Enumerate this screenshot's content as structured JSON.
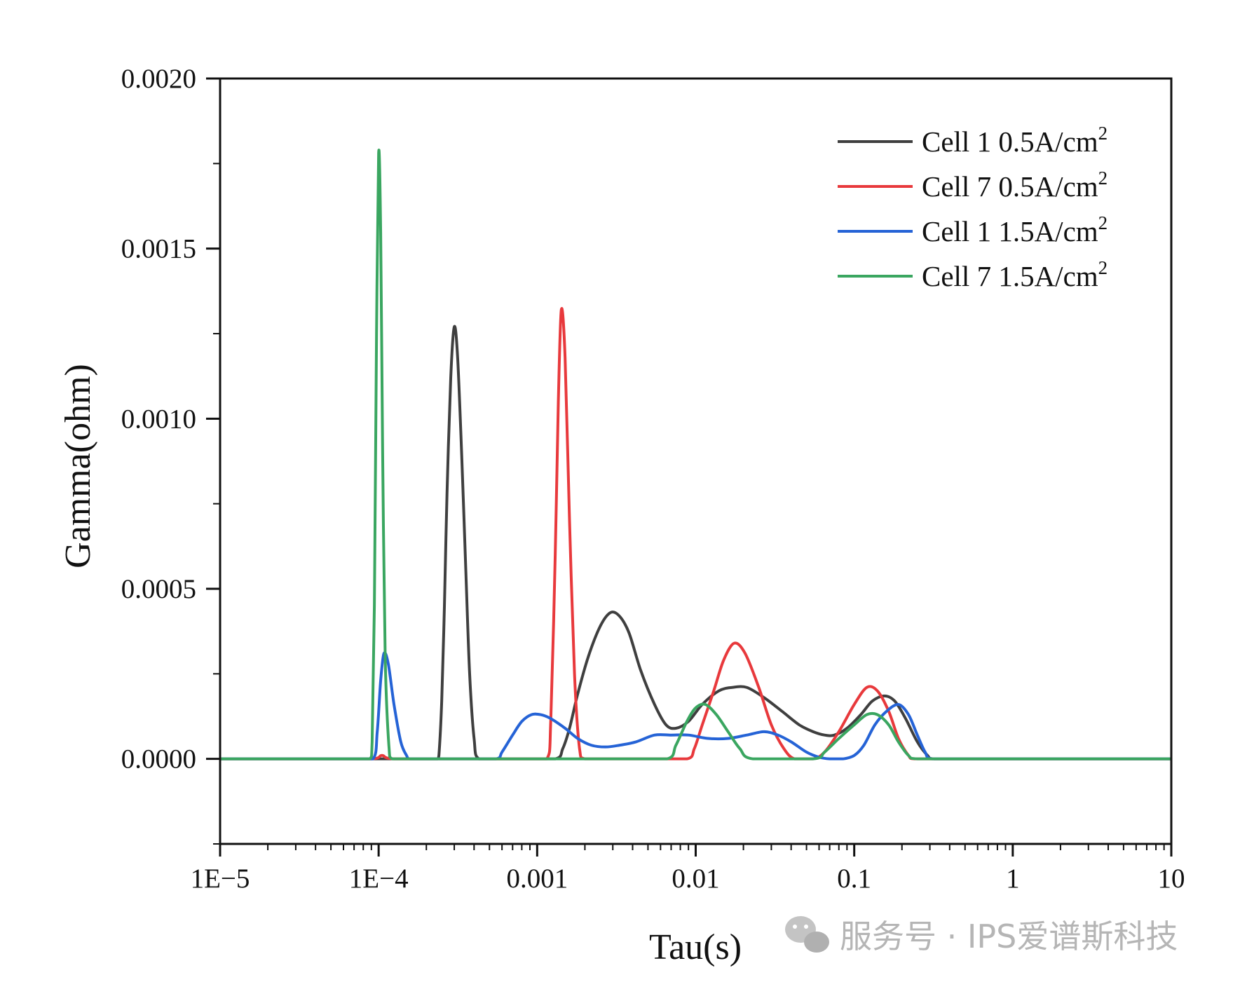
{
  "chart_data": {
    "type": "line",
    "title": "",
    "xlabel": "Tau(s)",
    "ylabel": "Gamma(ohm)",
    "x_scale": "log",
    "xlim": [
      1e-05,
      10
    ],
    "ylim": [
      -0.00025,
      0.002
    ],
    "x_ticks": [
      {
        "value": 1e-05,
        "label": "1E−5"
      },
      {
        "value": 0.0001,
        "label": "1E−4"
      },
      {
        "value": 0.001,
        "label": "0.001"
      },
      {
        "value": 0.01,
        "label": "0.01"
      },
      {
        "value": 0.1,
        "label": "0.1"
      },
      {
        "value": 1,
        "label": "1"
      },
      {
        "value": 10,
        "label": "10"
      }
    ],
    "y_ticks": [
      {
        "value": 0,
        "label": "0.0000"
      },
      {
        "value": 0.0005,
        "label": "0.0005"
      },
      {
        "value": 0.001,
        "label": "0.0010"
      },
      {
        "value": 0.0015,
        "label": "0.0015"
      },
      {
        "value": 0.002,
        "label": "0.0020"
      }
    ],
    "grid": false,
    "legend_position": "top-right",
    "series": [
      {
        "name": "Cell 1 0.5A/cm2",
        "label": "Cell 1 0.5A/cm",
        "superscript": "2",
        "color": "#3f3f3f",
        "points": [
          [
            1e-05,
            0
          ],
          [
            0.000235,
            0
          ],
          [
            0.00024,
            1e-05
          ],
          [
            0.00025,
            0.00017
          ],
          [
            0.00026,
            0.00045
          ],
          [
            0.00027,
            0.00078
          ],
          [
            0.000285,
            0.00112
          ],
          [
            0.0003,
            0.00127
          ],
          [
            0.000315,
            0.00118
          ],
          [
            0.000335,
            0.00088
          ],
          [
            0.000355,
            0.00055
          ],
          [
            0.000375,
            0.00025
          ],
          [
            0.0004,
            6e-05
          ],
          [
            0.00043,
            0
          ],
          [
            0.0013,
            0
          ],
          [
            0.00145,
            3e-05
          ],
          [
            0.0016,
            9e-05
          ],
          [
            0.0018,
            0.00019
          ],
          [
            0.0021,
            0.0003
          ],
          [
            0.0025,
            0.00039
          ],
          [
            0.0029,
            0.00043
          ],
          [
            0.0033,
            0.00042
          ],
          [
            0.0038,
            0.00037
          ],
          [
            0.0045,
            0.00026
          ],
          [
            0.0055,
            0.00016
          ],
          [
            0.0065,
            0.0001
          ],
          [
            0.0075,
            9e-05
          ],
          [
            0.009,
            0.00011
          ],
          [
            0.011,
            0.00016
          ],
          [
            0.014,
            0.0002
          ],
          [
            0.017,
            0.00021
          ],
          [
            0.021,
            0.00021
          ],
          [
            0.027,
            0.00018
          ],
          [
            0.035,
            0.00014
          ],
          [
            0.045,
            0.0001
          ],
          [
            0.055,
            8e-05
          ],
          [
            0.065,
            7e-05
          ],
          [
            0.075,
            7e-05
          ],
          [
            0.09,
            9e-05
          ],
          [
            0.11,
            0.00013
          ],
          [
            0.13,
            0.00017
          ],
          [
            0.155,
            0.000185
          ],
          [
            0.18,
            0.00017
          ],
          [
            0.21,
            0.00012
          ],
          [
            0.25,
            5e-05
          ],
          [
            0.29,
            1e-05
          ],
          [
            0.32,
            0
          ],
          [
            10,
            0
          ]
        ]
      },
      {
        "name": "Cell 7 0.5A/cm2",
        "label": "Cell 7 0.5A/cm",
        "superscript": "2",
        "color": "#e8393c",
        "points": [
          [
            1e-05,
            0
          ],
          [
            9e-05,
            0
          ],
          [
            0.000105,
            1e-05
          ],
          [
            0.000125,
            0
          ],
          [
            0.00115,
            0
          ],
          [
            0.00122,
            0.00012
          ],
          [
            0.0013,
            0.0006
          ],
          [
            0.00136,
            0.00105
          ],
          [
            0.00142,
            0.00132
          ],
          [
            0.0015,
            0.00118
          ],
          [
            0.0016,
            0.0007
          ],
          [
            0.00172,
            0.00025
          ],
          [
            0.00185,
            3e-05
          ],
          [
            0.002,
            0
          ],
          [
            0.0088,
            0
          ],
          [
            0.0098,
            3e-05
          ],
          [
            0.011,
            0.0001
          ],
          [
            0.013,
            0.0002
          ],
          [
            0.015,
            0.00029
          ],
          [
            0.0175,
            0.00034
          ],
          [
            0.0205,
            0.00031
          ],
          [
            0.025,
            0.00021
          ],
          [
            0.03,
            0.0001
          ],
          [
            0.036,
            3e-05
          ],
          [
            0.042,
            0
          ],
          [
            0.055,
            0
          ],
          [
            0.065,
            2e-05
          ],
          [
            0.08,
            8e-05
          ],
          [
            0.1,
            0.00016
          ],
          [
            0.12,
            0.00021
          ],
          [
            0.14,
            0.0002
          ],
          [
            0.165,
            0.00014
          ],
          [
            0.19,
            6e-05
          ],
          [
            0.22,
            1e-05
          ],
          [
            0.24,
            0
          ],
          [
            10,
            0
          ]
        ]
      },
      {
        "name": "Cell 1 1.5A/cm2",
        "label": "Cell 1 1.5A/cm",
        "superscript": "2",
        "color": "#2563d6",
        "points": [
          [
            1e-05,
            0
          ],
          [
            9.2e-05,
            0
          ],
          [
            9.8e-05,
            8e-05
          ],
          [
            0.000103,
            0.00023
          ],
          [
            0.000108,
            0.00031
          ],
          [
            0.000115,
            0.00028
          ],
          [
            0.000125,
            0.00016
          ],
          [
            0.000138,
            5e-05
          ],
          [
            0.00015,
            1e-05
          ],
          [
            0.000158,
            0
          ],
          [
            0.00055,
            0
          ],
          [
            0.0006,
            2e-05
          ],
          [
            0.0007,
            7e-05
          ],
          [
            0.0008,
            0.00011
          ],
          [
            0.00092,
            0.00013
          ],
          [
            0.00105,
            0.00013
          ],
          [
            0.0012,
            0.00012
          ],
          [
            0.0015,
            9e-05
          ],
          [
            0.0018,
            6e-05
          ],
          [
            0.0022,
            4e-05
          ],
          [
            0.0027,
            3.5e-05
          ],
          [
            0.0033,
            4e-05
          ],
          [
            0.0042,
            5e-05
          ],
          [
            0.0055,
            7e-05
          ],
          [
            0.007,
            7e-05
          ],
          [
            0.009,
            7e-05
          ],
          [
            0.012,
            6e-05
          ],
          [
            0.016,
            6e-05
          ],
          [
            0.021,
            7e-05
          ],
          [
            0.027,
            8e-05
          ],
          [
            0.033,
            7e-05
          ],
          [
            0.04,
            5e-05
          ],
          [
            0.05,
            2e-05
          ],
          [
            0.06,
            5e-06
          ],
          [
            0.07,
            0
          ],
          [
            0.085,
            0
          ],
          [
            0.1,
            1e-05
          ],
          [
            0.115,
            4e-05
          ],
          [
            0.135,
            0.0001
          ],
          [
            0.16,
            0.00014
          ],
          [
            0.19,
            0.00016
          ],
          [
            0.22,
            0.00013
          ],
          [
            0.25,
            7e-05
          ],
          [
            0.28,
            2e-05
          ],
          [
            0.31,
            0
          ],
          [
            10,
            0
          ]
        ]
      },
      {
        "name": "Cell 7 1.5A/cm2",
        "label": "Cell 7 1.5A/cm",
        "superscript": "2",
        "color": "#3aa660",
        "points": [
          [
            1e-05,
            0
          ],
          [
            8.8e-05,
            0
          ],
          [
            9.1e-05,
            5e-05
          ],
          [
            9.4e-05,
            0.00045
          ],
          [
            9.7e-05,
            0.00125
          ],
          [
            0.0001,
            0.00178
          ],
          [
            0.000103,
            0.00155
          ],
          [
            0.000106,
            0.0009
          ],
          [
            0.00011,
            0.0003
          ],
          [
            0.000116,
            4e-05
          ],
          [
            0.000122,
            0
          ],
          [
            0.0066,
            0
          ],
          [
            0.0075,
            4e-05
          ],
          [
            0.0088,
            0.00011
          ],
          [
            0.01,
            0.00015
          ],
          [
            0.0115,
            0.00016
          ],
          [
            0.0135,
            0.00013
          ],
          [
            0.016,
            8e-05
          ],
          [
            0.019,
            3e-05
          ],
          [
            0.023,
            0
          ],
          [
            0.055,
            0
          ],
          [
            0.065,
            2e-05
          ],
          [
            0.08,
            6e-05
          ],
          [
            0.1,
            0.0001
          ],
          [
            0.12,
            0.00013
          ],
          [
            0.14,
            0.00013
          ],
          [
            0.165,
            0.0001
          ],
          [
            0.19,
            5e-05
          ],
          [
            0.22,
            1e-05
          ],
          [
            0.25,
            0
          ],
          [
            10,
            0
          ]
        ]
      }
    ]
  },
  "watermark": {
    "text": "服务号 · IPS爱谱斯科技",
    "icon": "wechat-icon"
  }
}
